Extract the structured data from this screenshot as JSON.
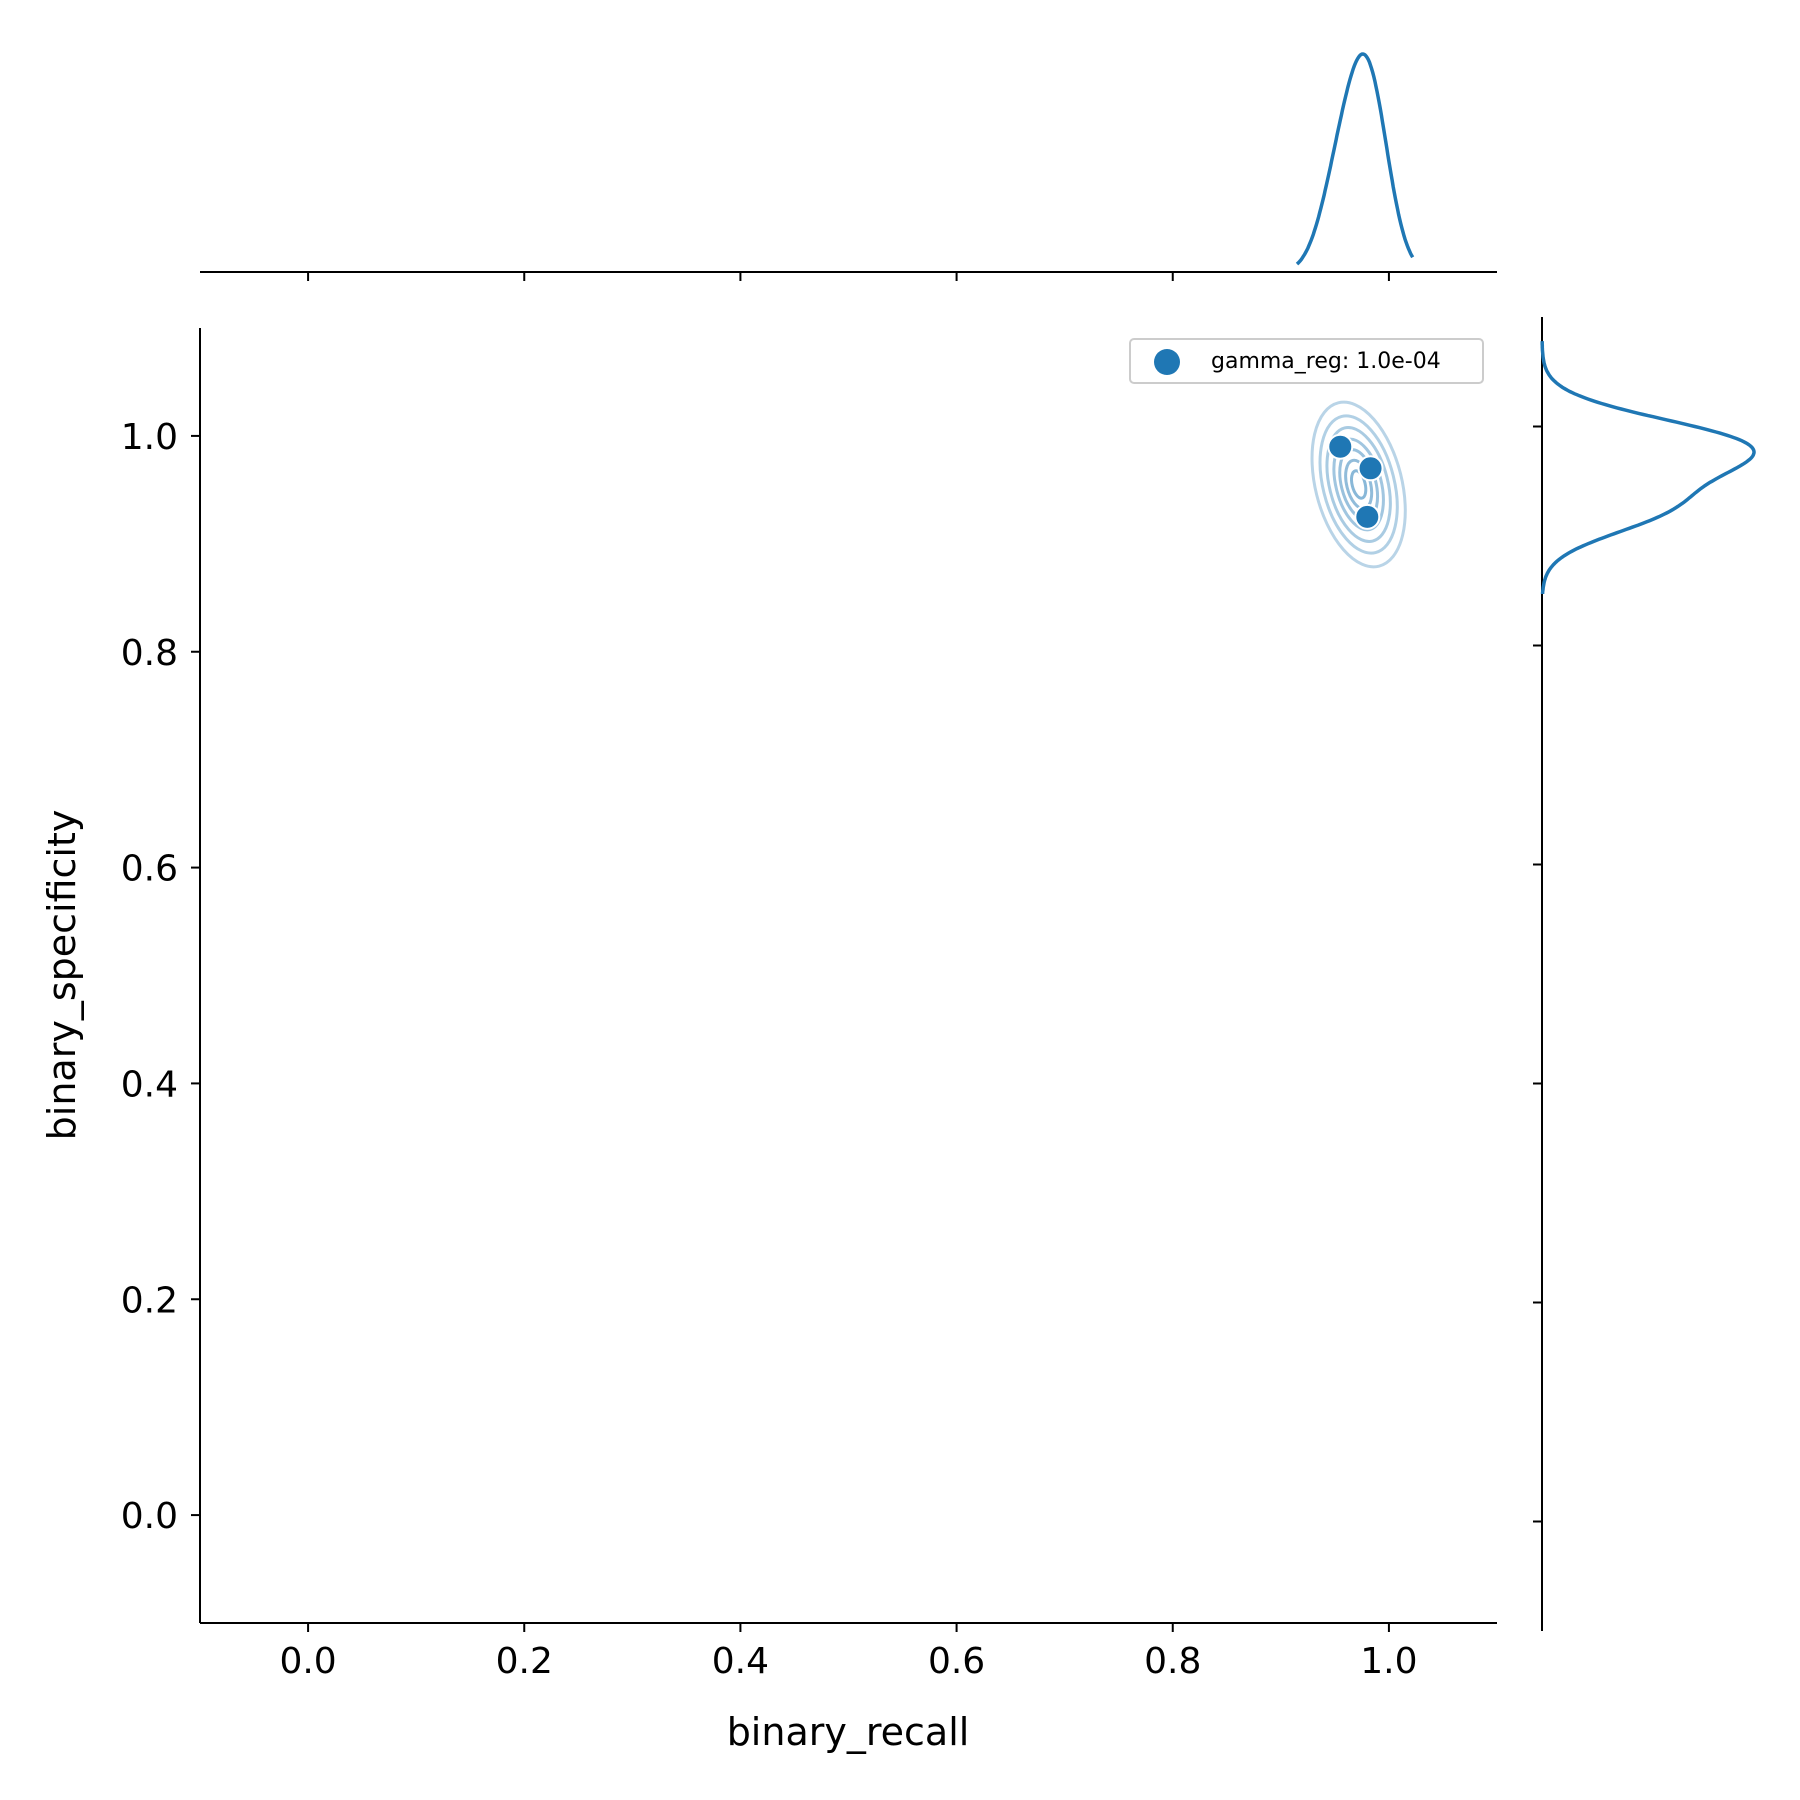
{
  "chart_data": {
    "type": "scatter",
    "title": "",
    "xlabel": "binary_recall",
    "ylabel": "binary_specificity",
    "xlim": [
      -0.1,
      1.1
    ],
    "ylim": [
      -0.1,
      1.1
    ],
    "xticks": [
      "0.0",
      "0.2",
      "0.4",
      "0.6",
      "0.8",
      "1.0"
    ],
    "yticks": [
      "0.0",
      "0.2",
      "0.4",
      "0.6",
      "0.8",
      "1.0"
    ],
    "grid": false,
    "legend_position": "top-right",
    "series": [
      {
        "name": "gamma_reg: 1.0e-04",
        "color": "#1f77b4",
        "points": [
          {
            "x": 0.955,
            "y": 0.99
          },
          {
            "x": 0.983,
            "y": 0.97
          },
          {
            "x": 0.98,
            "y": 0.925
          }
        ]
      }
    ],
    "marginals": {
      "top": "kde of binary_recall",
      "right": "kde of binary_specificity"
    }
  }
}
